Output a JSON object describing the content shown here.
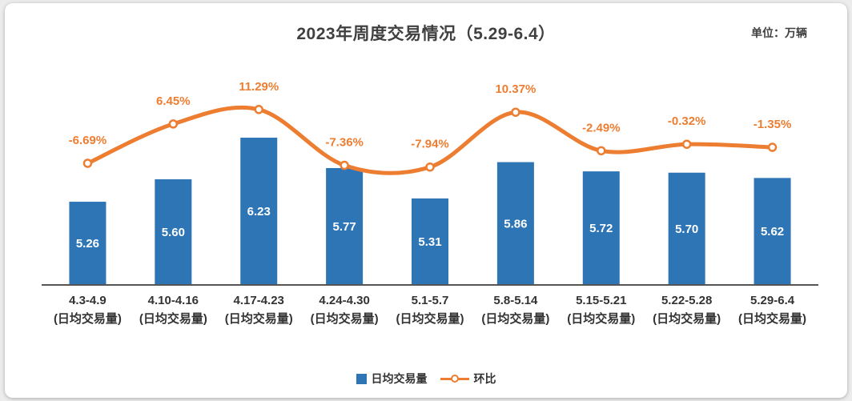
{
  "header": {
    "title": "2023年周度交易情况（5.29-6.4）",
    "unit_label": "单位：万辆"
  },
  "legend": {
    "bar_label": "日均交易量",
    "line_label": "环比"
  },
  "colors": {
    "bar": "#2E75B6",
    "line": "#ED7D31",
    "line_label_text": "#ED7D31",
    "bar_value_text": "#FFFFFF",
    "category_text": "#333333",
    "axis_line": "#555555",
    "title_text": "#404040"
  },
  "chart_data": {
    "type": "bar+line",
    "title": "2023年周度交易情况（5.29-6.4）",
    "unit": "万辆",
    "categories": [
      "4.3-4.9",
      "4.10-4.16",
      "4.17-4.23",
      "4.24-4.30",
      "5.1-5.7",
      "5.8-5.14",
      "5.15-5.21",
      "5.22-5.28",
      "5.29-6.4"
    ],
    "category_sublabel": "(日均交易量)",
    "series": [
      {
        "name": "日均交易量",
        "type": "bar",
        "values": [
          5.26,
          5.6,
          6.23,
          5.77,
          5.31,
          5.86,
          5.72,
          5.7,
          5.62
        ],
        "labels": [
          "5.26",
          "5.60",
          "6.23",
          "5.77",
          "5.31",
          "5.86",
          "5.72",
          "5.70",
          "5.62"
        ]
      },
      {
        "name": "环比",
        "type": "line",
        "unit": "%",
        "values": [
          -6.69,
          6.45,
          11.29,
          -7.36,
          -7.94,
          10.37,
          -2.49,
          -0.32,
          -1.35
        ],
        "labels": [
          "-6.69%",
          "6.45%",
          "11.29%",
          "-7.36%",
          "-7.94%",
          "10.37%",
          "-2.49%",
          "-0.32%",
          "-1.35%"
        ]
      }
    ],
    "bar_axis": {
      "baseline_value": 4,
      "implied_max": 7,
      "visible": false
    },
    "line_axis": {
      "unit": "%",
      "visible": false
    },
    "grid": false,
    "legend_position": "bottom-center"
  }
}
